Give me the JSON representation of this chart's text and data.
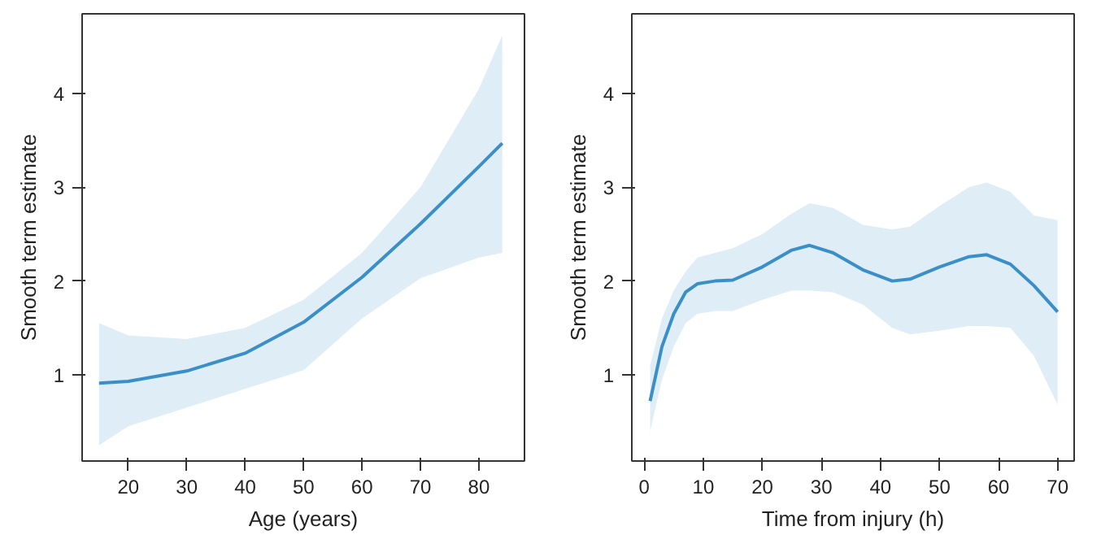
{
  "chart_data": [
    {
      "type": "line",
      "xlabel": "Age (years)",
      "ylabel": "Smooth term estimate",
      "xlim": [
        12.1,
        87.8
      ],
      "ylim": [
        0.08,
        4.85
      ],
      "xticks": [
        20,
        30,
        40,
        50,
        60,
        70,
        80
      ],
      "yticks": [
        1,
        2,
        3,
        4
      ],
      "grid": false,
      "series": [
        {
          "color": "#3a8fc8",
          "x": [
            15,
            20,
            30,
            40,
            50,
            60,
            70,
            80,
            84
          ],
          "values": [
            0.91,
            0.93,
            1.04,
            1.23,
            1.56,
            2.04,
            2.61,
            3.22,
            3.47
          ],
          "lower": [
            0.25,
            0.45,
            0.65,
            0.85,
            1.05,
            1.6,
            2.03,
            2.25,
            2.3
          ],
          "upper": [
            1.55,
            1.42,
            1.38,
            1.5,
            1.8,
            2.3,
            3.0,
            4.05,
            4.62
          ]
        }
      ]
    },
    {
      "type": "line",
      "xlabel": "Time from injury (h)",
      "ylabel": "Smooth term estimate",
      "xlim": [
        -2.1,
        72.8
      ],
      "ylim": [
        0.08,
        4.85
      ],
      "xticks": [
        0,
        10,
        20,
        30,
        40,
        50,
        60,
        70
      ],
      "yticks": [
        1,
        2,
        3,
        4
      ],
      "grid": false,
      "series": [
        {
          "color": "#3a8fc8",
          "x": [
            1,
            3,
            5,
            7,
            9,
            12,
            15,
            20,
            25,
            28,
            32,
            37,
            42,
            45,
            50,
            55,
            58,
            62,
            66,
            70
          ],
          "values": [
            0.72,
            1.3,
            1.65,
            1.88,
            1.97,
            2.0,
            2.01,
            2.15,
            2.33,
            2.38,
            2.3,
            2.12,
            2.0,
            2.02,
            2.15,
            2.26,
            2.28,
            2.18,
            1.95,
            1.67
          ],
          "lower": [
            0.4,
            0.95,
            1.3,
            1.55,
            1.65,
            1.68,
            1.68,
            1.8,
            1.9,
            1.9,
            1.88,
            1.75,
            1.5,
            1.43,
            1.47,
            1.52,
            1.52,
            1.5,
            1.2,
            0.68
          ],
          "upper": [
            1.1,
            1.6,
            1.9,
            2.1,
            2.25,
            2.3,
            2.35,
            2.5,
            2.72,
            2.83,
            2.78,
            2.6,
            2.55,
            2.58,
            2.8,
            3.0,
            3.05,
            2.95,
            2.7,
            2.65
          ]
        }
      ]
    }
  ]
}
